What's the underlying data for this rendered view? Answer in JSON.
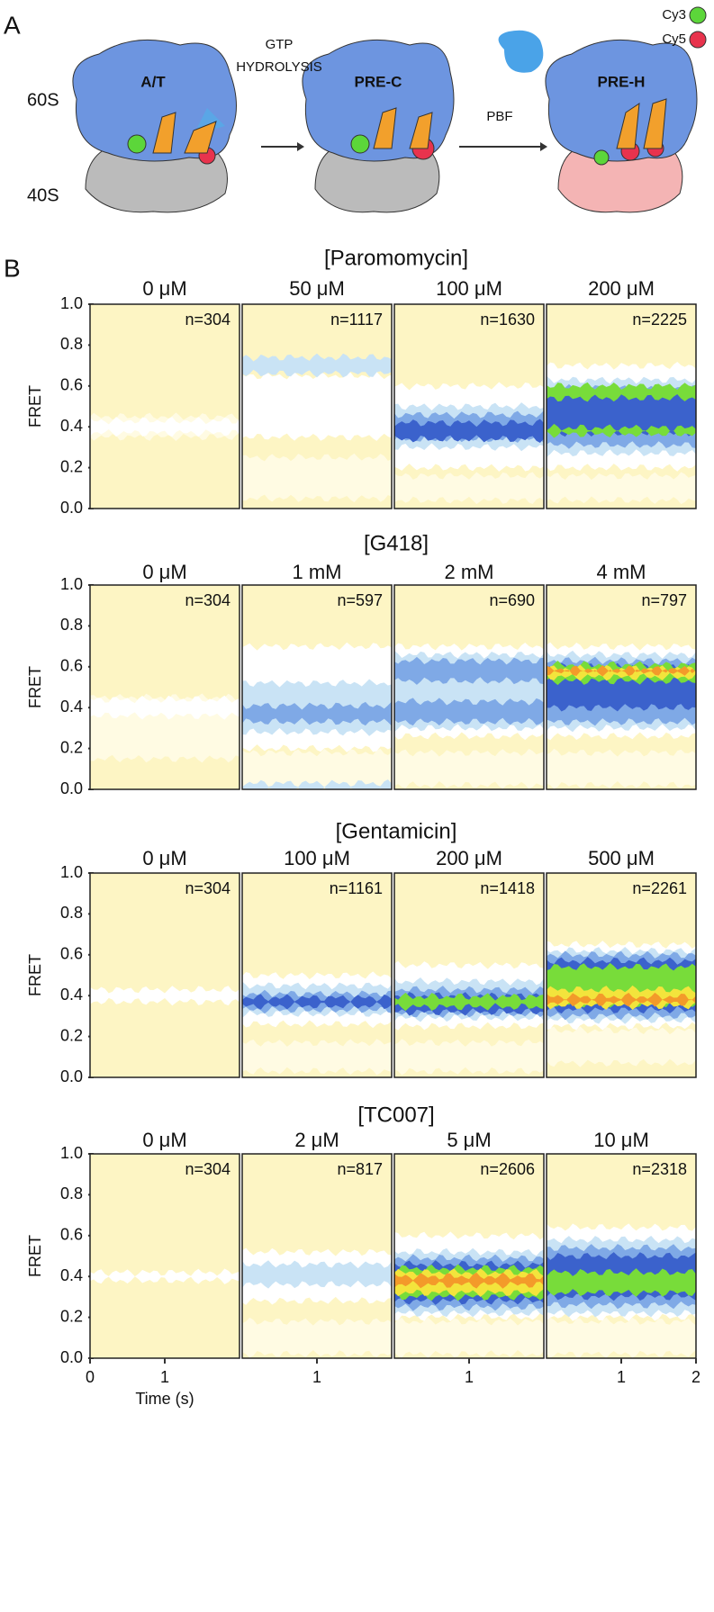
{
  "panel_a": {
    "label": "A",
    "large_subunit": "60S",
    "small_subunit": "40S",
    "states": [
      "A/T",
      "PRE-C",
      "PRE-H"
    ],
    "step1": [
      "GTP",
      "HYDROLYSIS"
    ],
    "step2": "PBF",
    "legend": [
      "Cy3",
      "Cy5"
    ]
  },
  "panel_b": {
    "label": "B",
    "ylabel": "FRET",
    "xlabel": "Time (s)",
    "ylim": [
      0,
      1
    ],
    "yticks": [
      {
        "value": 0,
        "label": "0.0"
      },
      {
        "value": 0.2,
        "label": "0.2"
      },
      {
        "value": 0.4,
        "label": "0.4"
      },
      {
        "value": 0.6,
        "label": "0.6"
      },
      {
        "value": 0.8,
        "label": "0.8"
      },
      {
        "value": 1,
        "label": "1.0"
      }
    ],
    "xlim": [
      0,
      2
    ],
    "xticks": [
      [
        0,
        1
      ],
      [
        1
      ],
      [
        1
      ],
      [
        1,
        2
      ]
    ],
    "background": "#fdf5c4",
    "level_colors": [
      "#fdf5c4",
      "#fffbe3",
      "#ffffff",
      "#c9e3f5",
      "#7fa9e6",
      "#3b62cc",
      "#78dc3a",
      "#f3e43c",
      "#f39a2a"
    ],
    "groups": [
      {
        "title": "[Paromomycin]",
        "panels": [
          {
            "conc": "0 μM",
            "n": "n=304",
            "bands": [
              [
                0.4,
                0.05,
                1
              ],
              [
                0.4,
                0.03,
                2
              ]
            ]
          },
          {
            "conc": "50 μM",
            "n": "n=1117",
            "bands": [
              [
                0.15,
                0.1,
                1
              ],
              [
                0.5,
                0.15,
                2
              ],
              [
                0.7,
                0.04,
                3
              ]
            ]
          },
          {
            "conc": "100 μM",
            "n": "n=1630",
            "bands": [
              [
                0.1,
                0.06,
                1
              ],
              [
                0.4,
                0.2,
                2
              ],
              [
                0.4,
                0.1,
                3
              ],
              [
                0.4,
                0.06,
                4
              ],
              [
                0.38,
                0.04,
                5
              ]
            ]
          },
          {
            "conc": "200 μM",
            "n": "n=2225",
            "bands": [
              [
                0.1,
                0.06,
                1
              ],
              [
                0.45,
                0.25,
                2
              ],
              [
                0.45,
                0.18,
                3
              ],
              [
                0.45,
                0.14,
                4
              ],
              [
                0.47,
                0.1,
                5
              ],
              [
                0.57,
                0.03,
                6
              ],
              [
                0.38,
                0.015,
                6
              ]
            ]
          }
        ]
      },
      {
        "title": "[G418]",
        "panels": [
          {
            "conc": "0 μM",
            "n": "n=304",
            "bands": [
              [
                0.3,
                0.15,
                1
              ],
              [
                0.4,
                0.04,
                2
              ]
            ]
          },
          {
            "conc": "1 mM",
            "n": "n=597",
            "bands": [
              [
                0.1,
                0.08,
                1
              ],
              [
                0.45,
                0.25,
                2
              ],
              [
                0.4,
                0.12,
                3
              ],
              [
                0.37,
                0.04,
                4
              ],
              [
                0.01,
                0.02,
                3
              ]
            ]
          },
          {
            "conc": "2 mM",
            "n": "n=690",
            "bands": [
              [
                0.1,
                0.08,
                1
              ],
              [
                0.48,
                0.22,
                2
              ],
              [
                0.48,
                0.18,
                3
              ],
              [
                0.58,
                0.05,
                4
              ],
              [
                0.38,
                0.05,
                4
              ]
            ]
          },
          {
            "conc": "4 mM",
            "n": "n=797",
            "bands": [
              [
                0.1,
                0.08,
                1
              ],
              [
                0.48,
                0.22,
                2
              ],
              [
                0.48,
                0.18,
                3
              ],
              [
                0.48,
                0.15,
                4
              ],
              [
                0.5,
                0.1,
                5
              ],
              [
                0.57,
                0.04,
                6
              ],
              [
                0.57,
                0.02,
                7
              ],
              [
                0.58,
                0.008,
                8
              ]
            ]
          }
        ]
      },
      {
        "title": "[Gentamicin]",
        "panels": [
          {
            "conc": "0 μM",
            "n": "n=304",
            "bands": [
              [
                0.4,
                0.03,
                2
              ]
            ]
          },
          {
            "conc": "100 μM",
            "n": "n=1161",
            "bands": [
              [
                0.1,
                0.07,
                1
              ],
              [
                0.38,
                0.12,
                2
              ],
              [
                0.38,
                0.07,
                3
              ],
              [
                0.37,
                0.04,
                4
              ],
              [
                0.37,
                0.02,
                5
              ]
            ]
          },
          {
            "conc": "200 μM",
            "n": "n=1418",
            "bands": [
              [
                0.1,
                0.07,
                1
              ],
              [
                0.4,
                0.15,
                2
              ],
              [
                0.38,
                0.09,
                3
              ],
              [
                0.37,
                0.06,
                4
              ],
              [
                0.36,
                0.04,
                5
              ],
              [
                0.37,
                0.025,
                6
              ]
            ]
          },
          {
            "conc": "500 μM",
            "n": "n=2261",
            "bands": [
              [
                0.15,
                0.08,
                1
              ],
              [
                0.45,
                0.2,
                2
              ],
              [
                0.45,
                0.17,
                3
              ],
              [
                0.45,
                0.15,
                4
              ],
              [
                0.45,
                0.12,
                5
              ],
              [
                0.45,
                0.09,
                6
              ],
              [
                0.39,
                0.04,
                7
              ],
              [
                0.38,
                0.015,
                8
              ]
            ]
          }
        ]
      },
      {
        "title": "[TC007]",
        "panels": [
          {
            "conc": "0 μM",
            "n": "n=304",
            "bands": [
              [
                0.4,
                0.02,
                2
              ]
            ]
          },
          {
            "conc": "2 μM",
            "n": "n=817",
            "bands": [
              [
                0.1,
                0.08,
                1
              ],
              [
                0.4,
                0.12,
                2
              ],
              [
                0.41,
                0.05,
                3
              ]
            ]
          },
          {
            "conc": "5 μM",
            "n": "n=2606",
            "bands": [
              [
                0.1,
                0.08,
                1
              ],
              [
                0.4,
                0.2,
                2
              ],
              [
                0.37,
                0.15,
                3
              ],
              [
                0.37,
                0.12,
                4
              ],
              [
                0.37,
                0.09,
                5
              ],
              [
                0.37,
                0.07,
                6
              ],
              [
                0.37,
                0.05,
                7
              ],
              [
                0.38,
                0.02,
                8
              ]
            ]
          },
          {
            "conc": "10 μM",
            "n": "n=2318",
            "bands": [
              [
                0.1,
                0.08,
                1
              ],
              [
                0.42,
                0.22,
                2
              ],
              [
                0.4,
                0.18,
                3
              ],
              [
                0.4,
                0.14,
                4
              ],
              [
                0.4,
                0.1,
                5
              ],
              [
                0.37,
                0.05,
                6
              ]
            ]
          }
        ]
      }
    ]
  }
}
